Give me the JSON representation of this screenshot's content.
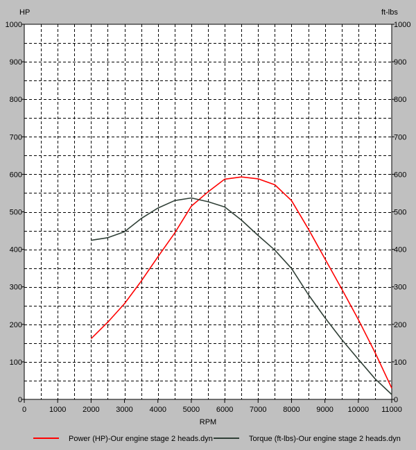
{
  "chart_data": {
    "type": "line",
    "title": "",
    "xlabel": "RPM",
    "ylabel_left": "HP",
    "ylabel_right": "ft-lbs",
    "xlim": [
      0,
      11000
    ],
    "ylim": [
      0,
      1000
    ],
    "x_ticks": [
      "0",
      "1000",
      "2000",
      "3000",
      "4000",
      "5000",
      "6000",
      "7000",
      "8000",
      "9000",
      "10000",
      "11000"
    ],
    "y_ticks": [
      "0",
      "100",
      "200",
      "300",
      "400",
      "500",
      "600",
      "700",
      "800",
      "900",
      "1000"
    ],
    "grid": true,
    "legend_position": "bottom",
    "series": [
      {
        "name": "Power (HP)-Our engine stage 2 heads.dyn",
        "color": "#ff0000",
        "x": [
          2000,
          2500,
          3000,
          3500,
          4000,
          4500,
          5000,
          5500,
          6000,
          6500,
          7000,
          7500,
          8000,
          8500,
          9000,
          9500,
          10000,
          10500,
          11000
        ],
        "y": [
          162,
          206,
          255,
          315,
          380,
          443,
          515,
          553,
          587,
          593,
          588,
          572,
          530,
          455,
          375,
          295,
          213,
          125,
          30
        ]
      },
      {
        "name": "Torque (ft-lbs)-Our engine stage 2 heads.dyn",
        "color": "#2f3f36",
        "x": [
          2000,
          2500,
          3000,
          3500,
          4000,
          4500,
          5000,
          5500,
          6000,
          6500,
          7000,
          7500,
          8000,
          8500,
          9000,
          9500,
          10000,
          10500,
          11000
        ],
        "y": [
          424,
          431,
          447,
          482,
          510,
          530,
          537,
          527,
          513,
          478,
          437,
          398,
          349,
          280,
          218,
          160,
          107,
          55,
          13
        ]
      }
    ]
  }
}
